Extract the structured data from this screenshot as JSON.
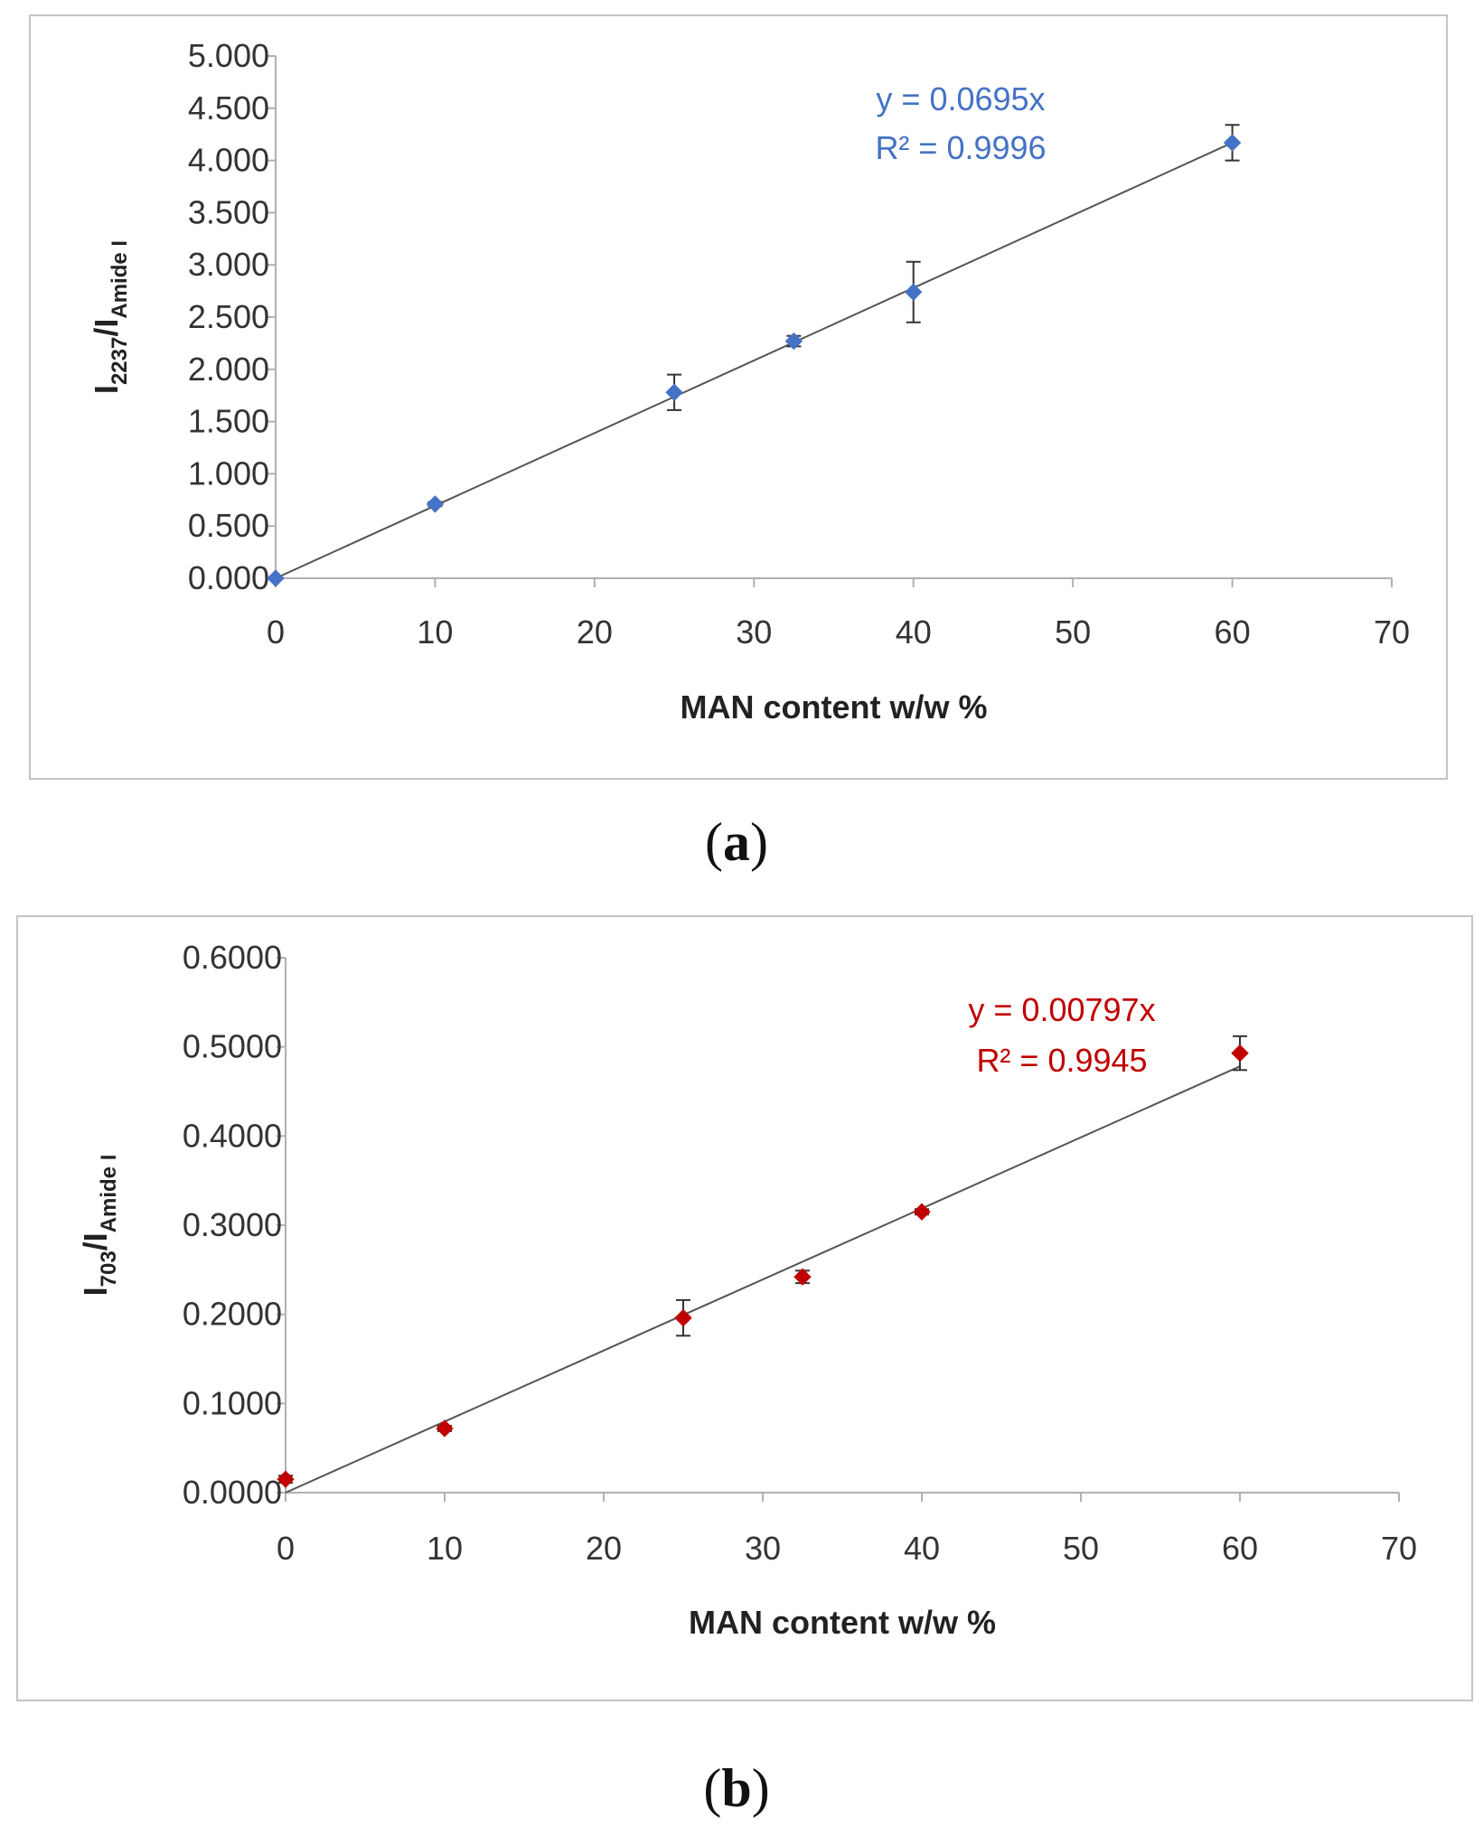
{
  "chart_data": [
    {
      "type": "scatter",
      "panel_label": "a",
      "series_color": "#4472C4",
      "xlabel": "MAN content w/w %",
      "ylabel": {
        "main": "I",
        "sub1": "2237",
        "sep": "/I",
        "sub2": "Amide I"
      },
      "xlim": [
        0,
        70
      ],
      "ylim": [
        0,
        5
      ],
      "x_ticks": [
        0,
        10,
        20,
        30,
        40,
        50,
        60,
        70
      ],
      "x_tick_labels": [
        "0",
        "10",
        "20",
        "30",
        "40",
        "50",
        "60",
        "70"
      ],
      "y_ticks": [
        0,
        0.5,
        1,
        1.5,
        2,
        2.5,
        3,
        3.5,
        4,
        4.5,
        5
      ],
      "y_tick_labels": [
        "0.000",
        "0.500",
        "1.000",
        "1.500",
        "2.000",
        "2.500",
        "3.000",
        "3.500",
        "4.000",
        "4.500",
        "5.000"
      ],
      "points": [
        {
          "x": 0,
          "y": 0.0,
          "err": 0.0
        },
        {
          "x": 10,
          "y": 0.71,
          "err": 0.02
        },
        {
          "x": 25,
          "y": 1.78,
          "err": 0.17
        },
        {
          "x": 32.5,
          "y": 2.27,
          "err": 0.05
        },
        {
          "x": 40,
          "y": 2.74,
          "err": 0.29
        },
        {
          "x": 60,
          "y": 4.17,
          "err": 0.17
        }
      ],
      "trendline": {
        "slope": 0.0695,
        "x_range": [
          0,
          60
        ]
      },
      "equation": "y = 0.0695x",
      "r_squared": "R² = 0.9996"
    },
    {
      "type": "scatter",
      "panel_label": "b",
      "series_color": "#C00000",
      "xlabel": "MAN content w/w %",
      "ylabel": {
        "main": "I",
        "sub1": "703",
        "sep": "/I",
        "sub2": "Amide I"
      },
      "xlim": [
        0,
        70
      ],
      "ylim": [
        0,
        0.6
      ],
      "x_ticks": [
        0,
        10,
        20,
        30,
        40,
        50,
        60,
        70
      ],
      "x_tick_labels": [
        "0",
        "10",
        "20",
        "30",
        "40",
        "50",
        "60",
        "70"
      ],
      "y_ticks": [
        0,
        0.1,
        0.2,
        0.3,
        0.4,
        0.5,
        0.6
      ],
      "y_tick_labels": [
        "0.0000",
        "0.1000",
        "0.2000",
        "0.3000",
        "0.4000",
        "0.5000",
        "0.6000"
      ],
      "points": [
        {
          "x": 0,
          "y": 0.015,
          "err": 0.004
        },
        {
          "x": 10,
          "y": 0.072,
          "err": 0.003
        },
        {
          "x": 25,
          "y": 0.196,
          "err": 0.02
        },
        {
          "x": 32.5,
          "y": 0.242,
          "err": 0.007
        },
        {
          "x": 40,
          "y": 0.315,
          "err": 0.003
        },
        {
          "x": 60,
          "y": 0.493,
          "err": 0.019
        }
      ],
      "trendline": {
        "slope": 0.00797,
        "x_range": [
          0,
          60
        ]
      },
      "equation": "y = 0.00797x",
      "r_squared": "R² = 0.9945"
    }
  ]
}
